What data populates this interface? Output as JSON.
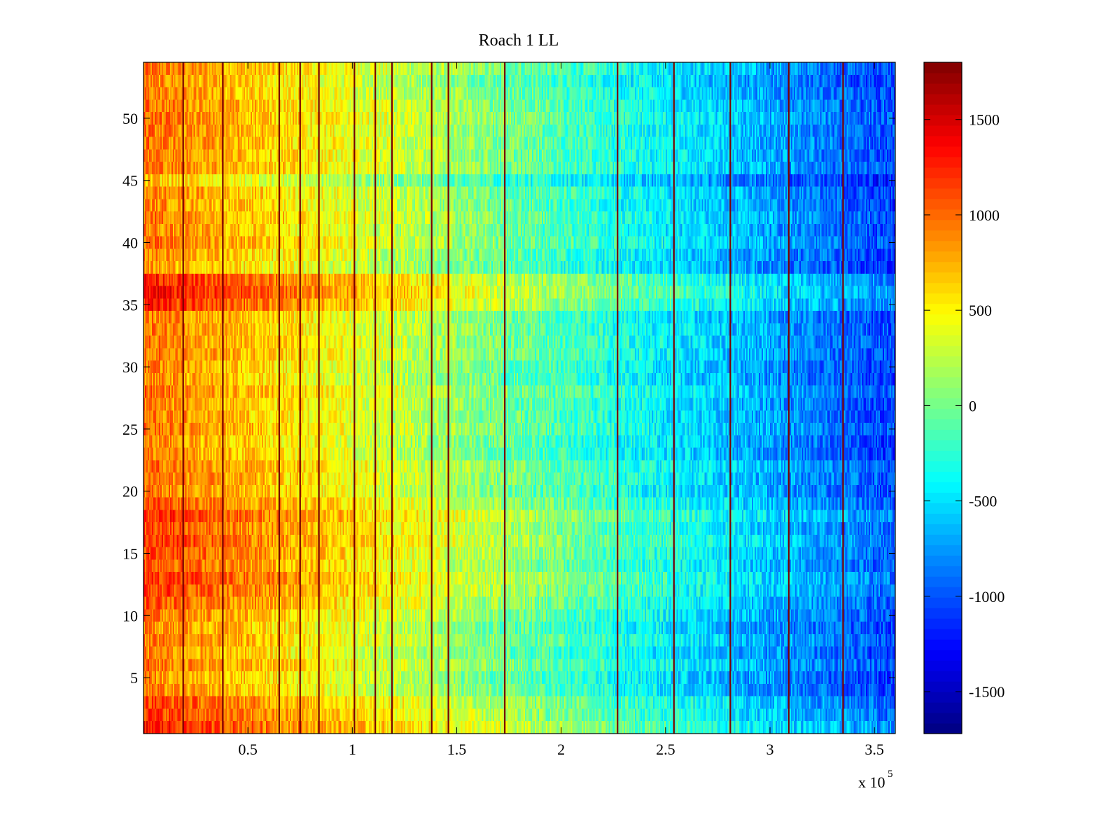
{
  "chart_data": {
    "type": "heatmap",
    "title": "Roach 1 LL",
    "xlabel": "",
    "ylabel": "",
    "x_range": [
      0,
      360000
    ],
    "y_range": [
      0.5,
      54.5
    ],
    "xlim": [
      0,
      3.6
    ],
    "x_exponent_label": "x 10",
    "x_exponent_power": "5",
    "x_ticks": [
      0.5,
      1,
      1.5,
      2,
      2.5,
      3,
      3.5
    ],
    "x_tick_labels": [
      "0.5",
      "1",
      "1.5",
      "2",
      "2.5",
      "3",
      "3.5"
    ],
    "y_ticks": [
      5,
      10,
      15,
      20,
      25,
      30,
      35,
      40,
      45,
      50
    ],
    "y_tick_labels": [
      "5",
      "10",
      "15",
      "20",
      "25",
      "30",
      "35",
      "40",
      "45",
      "50"
    ],
    "colormap": "jet",
    "clim": [
      -1720,
      1800
    ],
    "colorbar_ticks": [
      1500,
      1000,
      500,
      0,
      -500,
      -1000,
      -1500
    ],
    "colorbar_tick_labels": [
      "1500",
      "1000",
      "500",
      "0",
      "-500",
      "-1000",
      "-1500"
    ],
    "num_rows": 54,
    "trend": {
      "start_value": 950,
      "end_value": -1050,
      "description": "values decrease left to right from roughly +1000 to roughly -1000"
    },
    "spike_columns_x": [
      0.19,
      0.38,
      0.65,
      0.75,
      0.84,
      1.01,
      1.11,
      1.19,
      1.38,
      1.46,
      1.73,
      2.27,
      2.54,
      2.81,
      3.09,
      3.35
    ],
    "row_offsets": [
      {
        "rows": [
          1,
          3
        ],
        "offset": 300
      },
      {
        "rows": [
          11,
          19
        ],
        "offset": 250
      },
      {
        "rows": [
          35,
          37
        ],
        "offset": 350
      },
      {
        "rows": [
          38,
          38
        ],
        "offset": -150
      },
      {
        "rows": [
          45,
          45
        ],
        "offset": -250
      }
    ]
  }
}
